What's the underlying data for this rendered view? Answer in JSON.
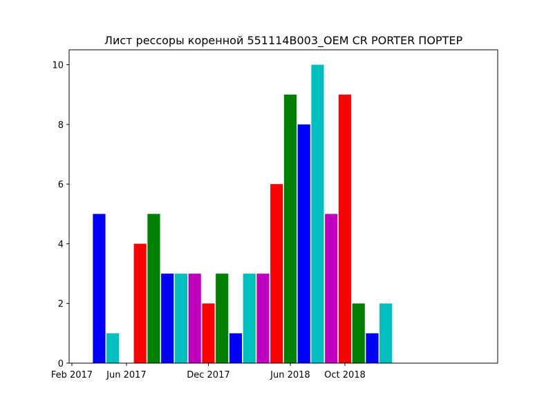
{
  "chart_data": {
    "type": "bar",
    "title": "Лист рессоры коренной 551114B003_OEM CR PORTER ПОРТЕР",
    "xlabel": "",
    "ylabel": "",
    "x_ticks": [
      "Feb 2017",
      "Jun 2017",
      "Dec 2017",
      "Jun 2018",
      "Oct 2018"
    ],
    "y_ticks": [
      "0",
      "2",
      "4",
      "6",
      "8",
      "10"
    ],
    "ylim": [
      0,
      10.5
    ],
    "grid": false,
    "categories": [
      "2017-04",
      "2017-05",
      "2017-06",
      "2017-07",
      "2017-08",
      "2017-09",
      "2017-10",
      "2017-11",
      "2017-12",
      "2018-01",
      "2018-02",
      "2018-03",
      "2018-04",
      "2018-05",
      "2018-06",
      "2018-07",
      "2018-08",
      "2018-09",
      "2018-10",
      "2018-11",
      "2018-12",
      "2019-01",
      "2019-02"
    ],
    "values": [
      5,
      1,
      0,
      4,
      5,
      3,
      3,
      3,
      2,
      3,
      1,
      3,
      3,
      6,
      9,
      8,
      10,
      5,
      9,
      2,
      1,
      2,
      0
    ],
    "colors": [
      "#0000ff",
      "#00bfbf",
      "#ff0000",
      "#ff0000",
      "#008000",
      "#0000ff",
      "#00bfbf",
      "#bf00bf",
      "#ff0000",
      "#008000",
      "#0000ff",
      "#00bfbf",
      "#bf00bf",
      "#ff0000",
      "#008000",
      "#0000ff",
      "#00bfbf",
      "#bf00bf",
      "#ff0000",
      "#008000",
      "#0000ff",
      "#00bfbf",
      "#bf00bf"
    ]
  }
}
